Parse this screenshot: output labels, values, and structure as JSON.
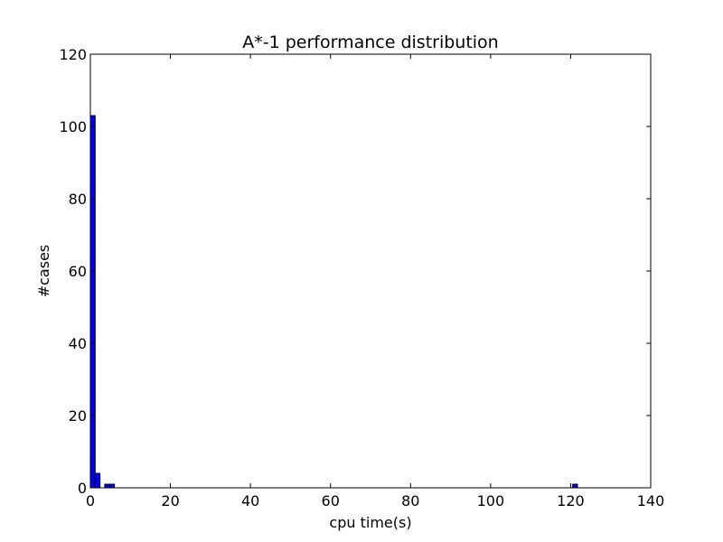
{
  "chart_data": {
    "type": "bar",
    "title": "A*-1 performance distribution",
    "xlabel": "cpu time(s)",
    "ylabel": "#cases",
    "xlim": [
      0,
      140
    ],
    "ylim": [
      0,
      120
    ],
    "xticks": [
      0,
      20,
      40,
      60,
      80,
      100,
      120,
      140
    ],
    "yticks": [
      0,
      20,
      40,
      60,
      80,
      100,
      120
    ],
    "grid": false,
    "bar_color": "#0000ff",
    "bins": [
      {
        "x0": 0.0,
        "x1": 1.2,
        "value": 103
      },
      {
        "x0": 1.2,
        "x1": 2.4,
        "value": 4
      },
      {
        "x0": 3.6,
        "x1": 4.8,
        "value": 1
      },
      {
        "x0": 4.8,
        "x1": 6.0,
        "value": 1
      },
      {
        "x0": 120.5,
        "x1": 121.7,
        "value": 1
      }
    ]
  }
}
